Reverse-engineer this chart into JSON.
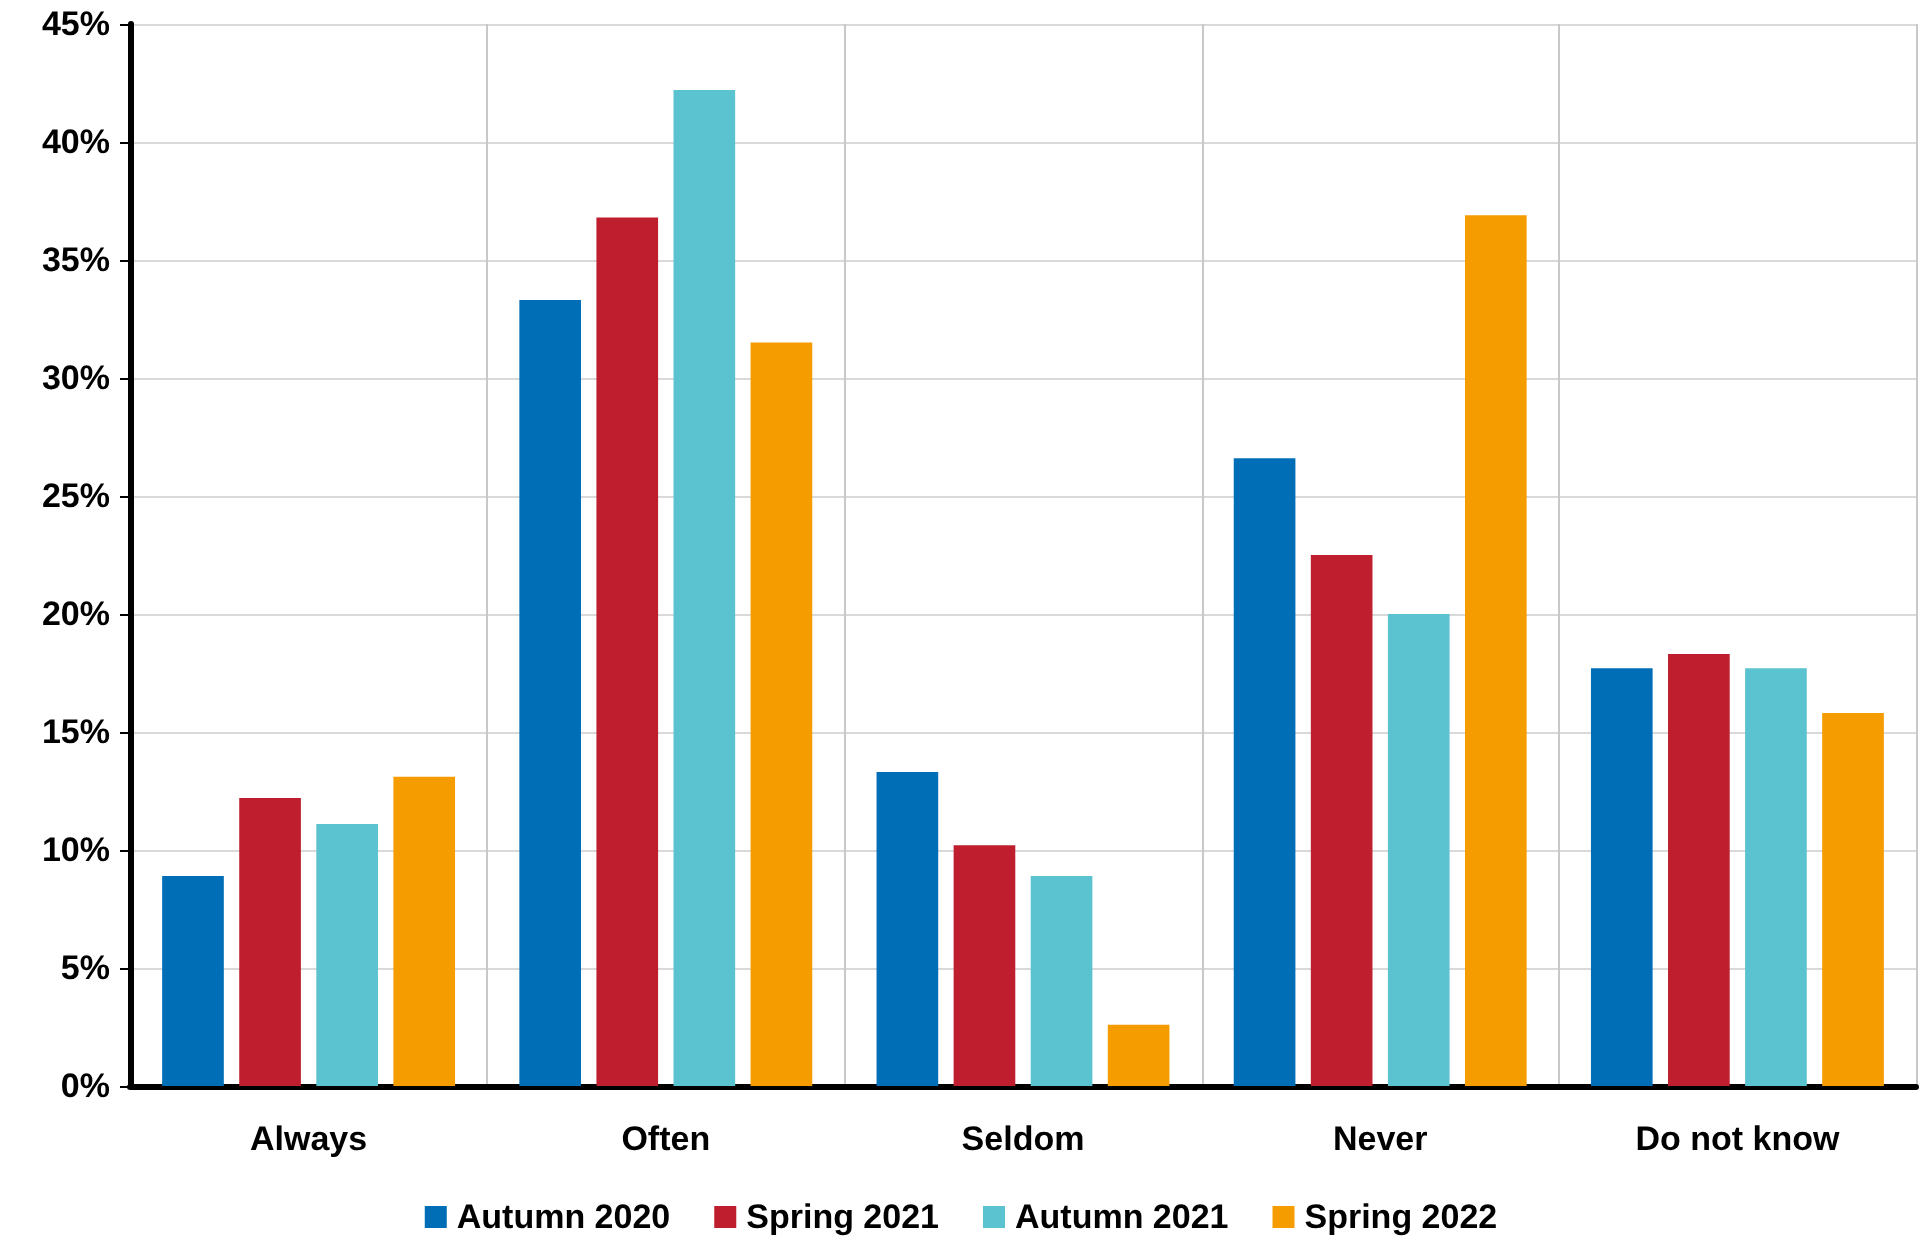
{
  "chart_data": {
    "type": "bar",
    "categories": [
      "Always",
      "Often",
      "Seldom",
      "Never",
      "Do not know"
    ],
    "series": [
      {
        "name": "Autumn 2020",
        "color": "#006eb6",
        "values": [
          8.9,
          33.3,
          13.3,
          26.6,
          17.7
        ]
      },
      {
        "name": "Spring 2021",
        "color": "#be1e2d",
        "values": [
          12.2,
          36.8,
          10.2,
          22.5,
          18.3
        ]
      },
      {
        "name": "Autumn 2021",
        "color": "#5bc2d0",
        "values": [
          11.1,
          42.2,
          8.9,
          20.0,
          17.7
        ]
      },
      {
        "name": "Spring 2022",
        "color": "#f59c00",
        "values": [
          13.1,
          31.5,
          2.6,
          36.9,
          15.8
        ]
      }
    ],
    "ylim": [
      0,
      45
    ],
    "yticks": [
      {
        "value": 0,
        "label": "0%"
      },
      {
        "value": 5,
        "label": "5%"
      },
      {
        "value": 10,
        "label": "10%"
      },
      {
        "value": 15,
        "label": "15%"
      },
      {
        "value": 20,
        "label": "20%"
      },
      {
        "value": 25,
        "label": "25%"
      },
      {
        "value": 30,
        "label": "30%"
      },
      {
        "value": 35,
        "label": "35%"
      },
      {
        "value": 40,
        "label": "40%"
      },
      {
        "value": 45,
        "label": "45%"
      }
    ],
    "grid": true,
    "legend": "bottom"
  }
}
